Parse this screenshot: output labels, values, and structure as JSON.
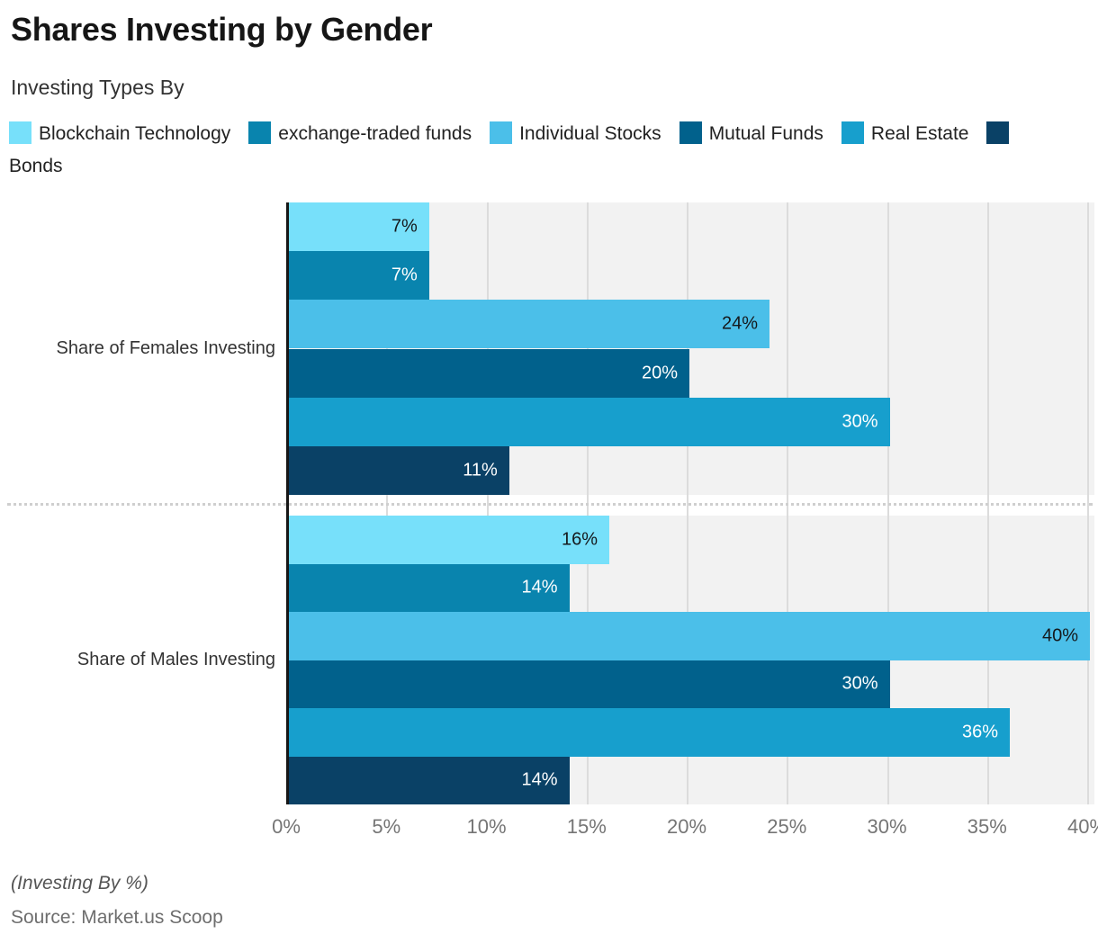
{
  "title": "Shares Investing by Gender",
  "subtitle": "Investing Types By",
  "footer": {
    "axis_note": "(Investing By %)",
    "source": "Source: Market.us Scoop"
  },
  "style": {
    "plot_background": "#f2f2f2",
    "gridline_color": "#dcdcdc",
    "axis_color": "#161616"
  },
  "chart_data": {
    "type": "bar",
    "orientation": "horizontal",
    "title": "Shares Investing by Gender",
    "categories": [
      "Share of Females Investing",
      "Share of Males Investing"
    ],
    "series": [
      {
        "name": "Blockchain Technology",
        "color": "#77e0fa",
        "values": [
          7,
          16
        ],
        "labels": [
          "7%",
          "16%"
        ],
        "label_color": "#15191c"
      },
      {
        "name": "exchange-traded funds",
        "color": "#0984ae",
        "values": [
          7,
          14
        ],
        "labels": [
          "7%",
          "14%"
        ],
        "label_color": "#ffffff"
      },
      {
        "name": "Individual Stocks",
        "color": "#4bbfe9",
        "values": [
          24,
          40
        ],
        "labels": [
          "24%",
          "40%"
        ],
        "label_color": "#15191c"
      },
      {
        "name": "Mutual Funds",
        "color": "#01618c",
        "values": [
          20,
          30
        ],
        "labels": [
          "20%",
          "30%"
        ],
        "label_color": "#ffffff"
      },
      {
        "name": "Real Estate",
        "color": "#179fcd",
        "values": [
          30,
          36
        ],
        "labels": [
          "30%",
          "36%"
        ],
        "label_color": "#ffffff"
      },
      {
        "name": "Bonds",
        "color": "#0a4166",
        "values": [
          11,
          14
        ],
        "labels": [
          "11%",
          "14%"
        ],
        "label_color": "#ffffff"
      }
    ],
    "xticks": [
      "0%",
      "5%",
      "10%",
      "15%",
      "20%",
      "25%",
      "30%",
      "35%",
      "40%"
    ],
    "xlim": [
      0,
      40
    ],
    "grid": true,
    "legend_position": "top",
    "value_suffix": "%"
  }
}
